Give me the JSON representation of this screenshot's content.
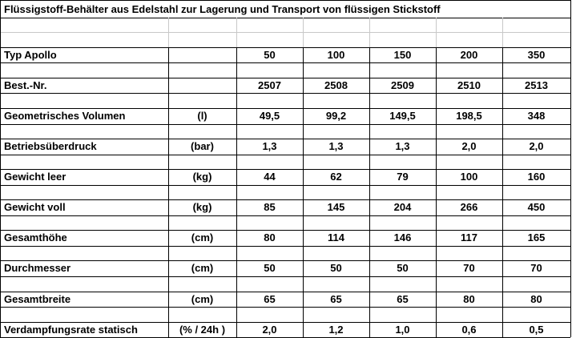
{
  "title": "Flüssigstoff-Behälter aus Edelstahl zur Lagerung und Transport von flüssigen Stickstoff",
  "table": {
    "rows": [
      {
        "label": "Typ Apollo",
        "unit": "",
        "values": [
          "50",
          "100",
          "150",
          "200",
          "350"
        ]
      },
      {
        "label": "Best.-Nr.",
        "unit": "",
        "values": [
          "2507",
          "2508",
          "2509",
          "2510",
          "2513"
        ]
      },
      {
        "label": "Geometrisches Volumen",
        "unit": "(l)",
        "values": [
          "49,5",
          "99,2",
          "149,5",
          "198,5",
          "348"
        ]
      },
      {
        "label": "Betriebsüberdruck",
        "unit": "(bar)",
        "values": [
          "1,3",
          "1,3",
          "1,3",
          "2,0",
          "2,0"
        ]
      },
      {
        "label": "Gewicht leer",
        "unit": "(kg)",
        "values": [
          "44",
          "62",
          "79",
          "100",
          "160"
        ]
      },
      {
        "label": "Gewicht voll",
        "unit": "(kg)",
        "values": [
          "85",
          "145",
          "204",
          "266",
          "450"
        ]
      },
      {
        "label": "Gesamthöhe",
        "unit": "(cm)",
        "values": [
          "80",
          "114",
          "146",
          "117",
          "165"
        ]
      },
      {
        "label": "Durchmesser",
        "unit": "(cm)",
        "values": [
          "50",
          "50",
          "50",
          "70",
          "70"
        ]
      },
      {
        "label": "Gesamtbreite",
        "unit": "(cm)",
        "values": [
          "65",
          "65",
          "65",
          "80",
          "80"
        ]
      },
      {
        "label": "Verdampfungsrate statisch",
        "unit": "(% / 24h )",
        "values": [
          "2,0",
          "1,2",
          "1,0",
          "0,6",
          "0,5"
        ]
      }
    ]
  }
}
